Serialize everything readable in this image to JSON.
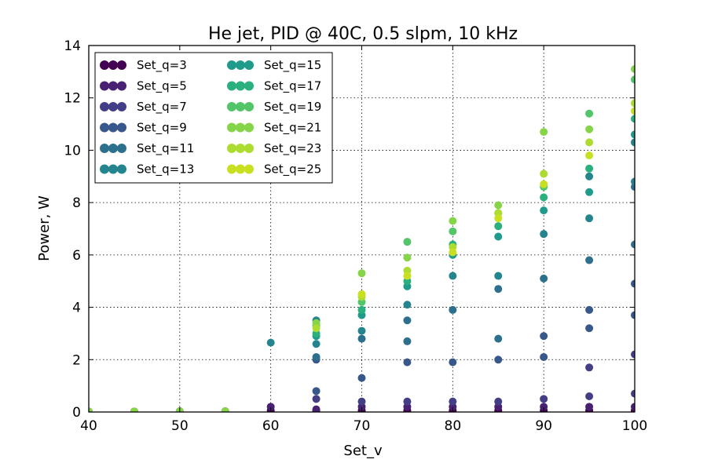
{
  "chart_data": {
    "type": "scatter",
    "title": "He jet, PID @ 40C, 0.5 slpm, 10 kHz",
    "xlabel": "Set_v",
    "ylabel": "Power, W",
    "xlim": [
      40,
      100
    ],
    "ylim": [
      0,
      14
    ],
    "x_ticks": [
      "40",
      "50",
      "60",
      "70",
      "80",
      "90",
      "100"
    ],
    "y_ticks": [
      "0",
      "2",
      "4",
      "6",
      "8",
      "10",
      "12",
      "14"
    ],
    "grid": true,
    "legend_position": "top-left",
    "series": [
      {
        "name": "Set_q=3",
        "color": "#440154",
        "points": [
          [
            40,
            0.02
          ],
          [
            45,
            0.02
          ],
          [
            50,
            0.03
          ],
          [
            55,
            0.03
          ],
          [
            60,
            0.05
          ],
          [
            65,
            0.05
          ],
          [
            70,
            0.05
          ],
          [
            75,
            0.05
          ],
          [
            80,
            0.05
          ],
          [
            85,
            0.05
          ],
          [
            90,
            0.05
          ],
          [
            95,
            0.05
          ],
          [
            100,
            0.05
          ]
        ]
      },
      {
        "name": "Set_q=5",
        "color": "#482173",
        "points": [
          [
            60,
            0.2
          ],
          [
            65,
            0.1
          ],
          [
            70,
            0.2
          ],
          [
            75,
            0.2
          ],
          [
            80,
            0.2
          ],
          [
            85,
            0.2
          ],
          [
            90,
            0.2
          ],
          [
            95,
            0.2
          ],
          [
            100,
            0.2
          ]
        ]
      },
      {
        "name": "Set_q=7",
        "color": "#433e85",
        "points": [
          [
            65,
            0.5
          ],
          [
            70,
            0.4
          ],
          [
            75,
            0.4
          ],
          [
            80,
            0.4
          ],
          [
            85,
            0.4
          ],
          [
            90,
            0.5
          ],
          [
            95,
            0.6
          ],
          [
            100,
            0.7
          ],
          [
            95,
            1.7
          ],
          [
            100,
            2.2
          ]
        ]
      },
      {
        "name": "Set_q=9",
        "color": "#38588c",
        "points": [
          [
            65,
            0.8
          ],
          [
            65,
            2.0
          ],
          [
            70,
            1.3
          ],
          [
            75,
            1.9
          ],
          [
            80,
            1.9
          ],
          [
            85,
            2.0
          ],
          [
            90,
            2.1
          ],
          [
            90,
            2.9
          ],
          [
            95,
            3.2
          ],
          [
            95,
            3.9
          ],
          [
            100,
            3.7
          ],
          [
            100,
            4.9
          ]
        ]
      },
      {
        "name": "Set_q=11",
        "color": "#2d708e",
        "points": [
          [
            65,
            2.1
          ],
          [
            70,
            2.8
          ],
          [
            75,
            2.7
          ],
          [
            75,
            3.5
          ],
          [
            80,
            3.9
          ],
          [
            85,
            2.8
          ],
          [
            85,
            4.7
          ],
          [
            90,
            5.1
          ],
          [
            95,
            5.8
          ],
          [
            100,
            6.4
          ],
          [
            100,
            8.6
          ]
        ]
      },
      {
        "name": "Set_q=13",
        "color": "#25858e",
        "points": [
          [
            60,
            2.65
          ],
          [
            65,
            2.6
          ],
          [
            65,
            3.5
          ],
          [
            70,
            3.1
          ],
          [
            75,
            4.1
          ],
          [
            80,
            5.2
          ],
          [
            85,
            5.2
          ],
          [
            90,
            6.8
          ],
          [
            95,
            7.4
          ],
          [
            95,
            9.0
          ],
          [
            100,
            8.8
          ],
          [
            100,
            10.3
          ]
        ]
      },
      {
        "name": "Set_q=15",
        "color": "#1e9b8a",
        "points": [
          [
            65,
            2.9
          ],
          [
            70,
            3.7
          ],
          [
            75,
            4.8
          ],
          [
            80,
            6.0
          ],
          [
            85,
            6.7
          ],
          [
            90,
            7.7
          ],
          [
            95,
            8.4
          ],
          [
            100,
            10.6
          ]
        ]
      },
      {
        "name": "Set_q=17",
        "color": "#2ab07f",
        "points": [
          [
            65,
            3.0
          ],
          [
            70,
            3.9
          ],
          [
            75,
            5.0
          ],
          [
            80,
            6.4
          ],
          [
            85,
            7.1
          ],
          [
            90,
            8.2
          ],
          [
            95,
            9.3
          ],
          [
            100,
            11.2
          ]
        ]
      },
      {
        "name": "Set_q=19",
        "color": "#52c569",
        "points": [
          [
            65,
            3.3
          ],
          [
            70,
            4.2
          ],
          [
            75,
            6.5
          ],
          [
            80,
            6.9
          ],
          [
            85,
            7.6
          ],
          [
            90,
            8.6
          ],
          [
            95,
            11.4
          ],
          [
            100,
            12.7
          ]
        ]
      },
      {
        "name": "Set_q=21",
        "color": "#86d549",
        "points": [
          [
            40,
            0.02
          ],
          [
            45,
            0.02
          ],
          [
            50,
            0.03
          ],
          [
            55,
            0.03
          ],
          [
            65,
            3.4
          ],
          [
            70,
            5.3
          ],
          [
            75,
            5.9
          ],
          [
            80,
            7.3
          ],
          [
            85,
            7.9
          ],
          [
            90,
            10.7
          ],
          [
            95,
            10.8
          ],
          [
            100,
            13.1
          ]
        ]
      },
      {
        "name": "Set_q=23",
        "color": "#addc30",
        "points": [
          [
            65,
            3.2
          ],
          [
            70,
            4.4
          ],
          [
            75,
            5.4
          ],
          [
            80,
            6.3
          ],
          [
            85,
            7.6
          ],
          [
            90,
            9.1
          ],
          [
            95,
            10.3
          ],
          [
            100,
            11.8
          ]
        ]
      },
      {
        "name": "Set_q=25",
        "color": "#c8e020",
        "points": [
          [
            70,
            4.5
          ],
          [
            75,
            5.2
          ],
          [
            80,
            6.1
          ],
          [
            85,
            7.4
          ],
          [
            90,
            8.7
          ],
          [
            95,
            9.8
          ],
          [
            100,
            11.5
          ]
        ]
      }
    ]
  }
}
